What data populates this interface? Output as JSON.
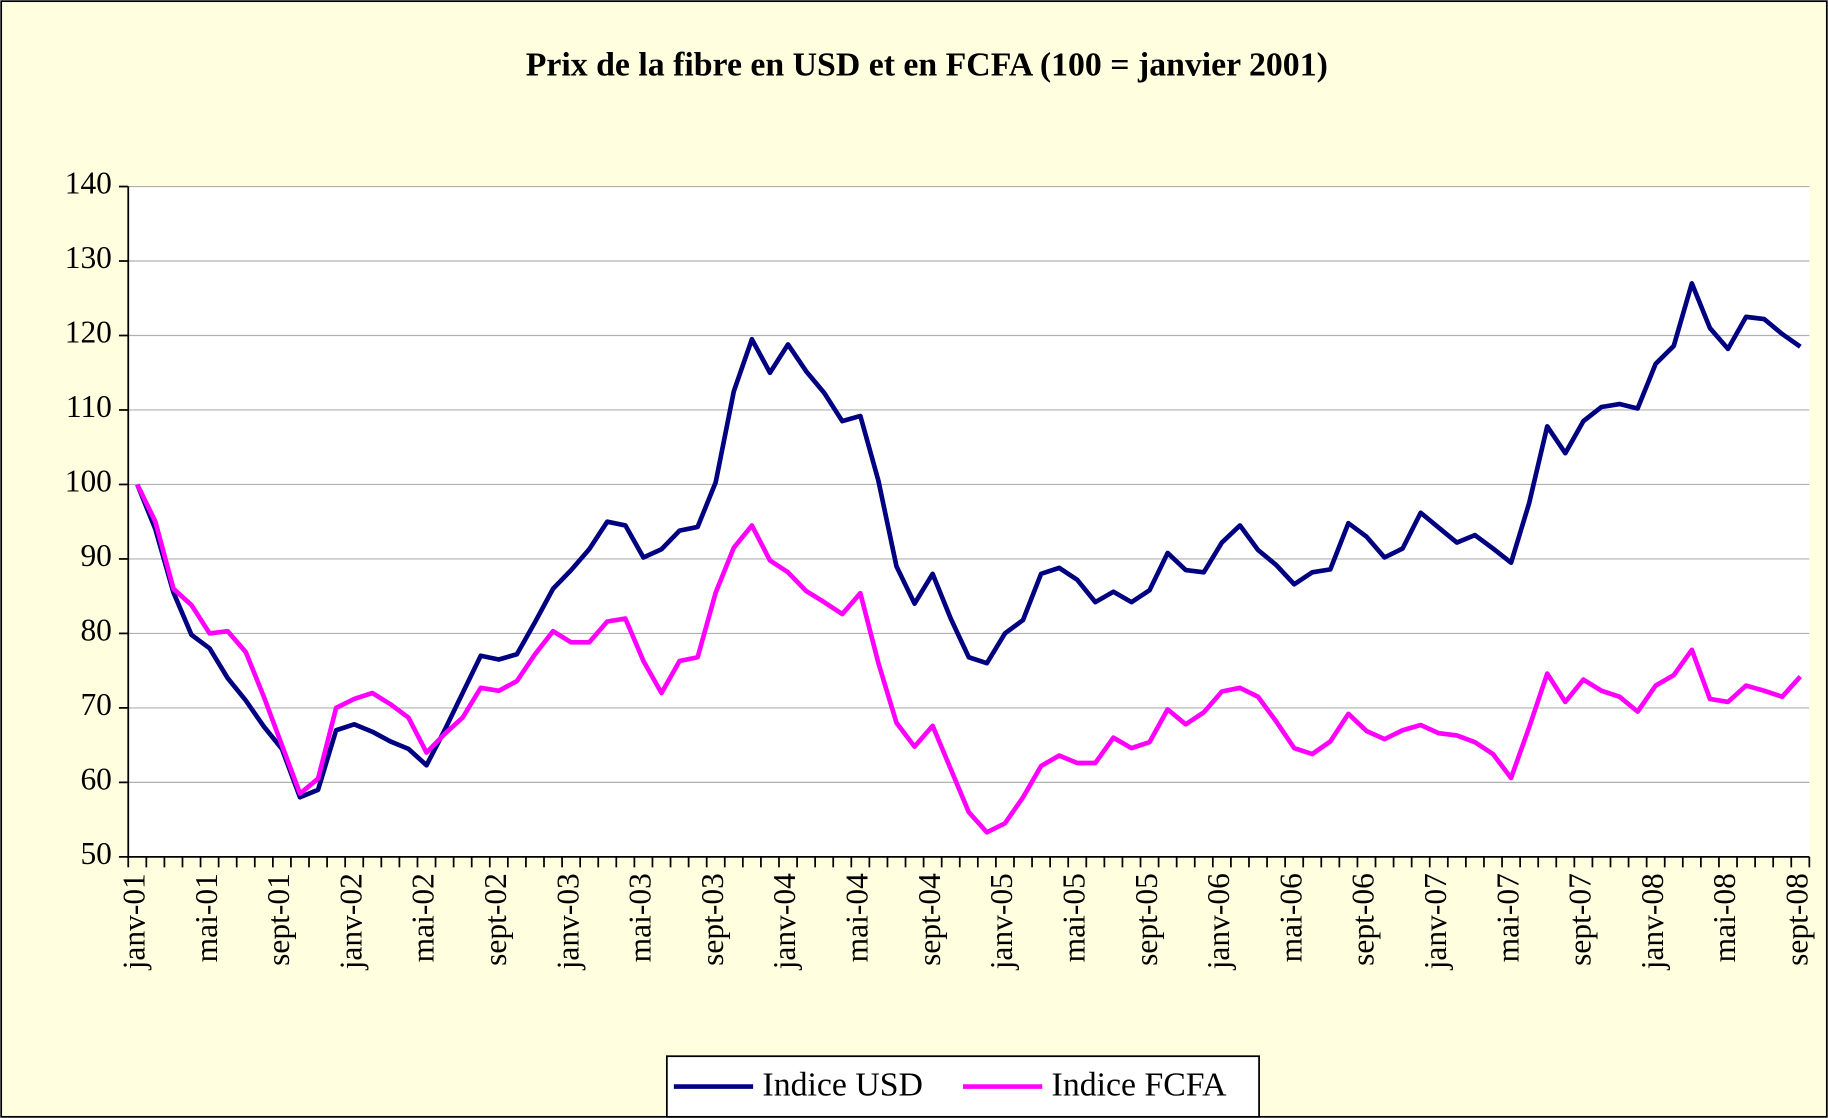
{
  "chart_data": {
    "type": "line",
    "title": "Prix de la fibre en USD et en FCFA (100 = janvier 2001)",
    "categories": [
      "janv-01",
      null,
      null,
      null,
      "mai-01",
      null,
      null,
      null,
      "sept-01",
      null,
      null,
      null,
      "janv-02",
      null,
      null,
      null,
      "mai-02",
      null,
      null,
      null,
      "sept-02",
      null,
      null,
      null,
      "janv-03",
      null,
      null,
      null,
      "mai-03",
      null,
      null,
      null,
      "sept-03",
      null,
      null,
      null,
      "janv-04",
      null,
      null,
      null,
      "mai-04",
      null,
      null,
      null,
      "sept-04",
      null,
      null,
      null,
      "janv-05",
      null,
      null,
      null,
      "mai-05",
      null,
      null,
      null,
      "sept-05",
      null,
      null,
      null,
      "janv-06",
      null,
      null,
      null,
      "mai-06",
      null,
      null,
      null,
      "sept-06",
      null,
      null,
      null,
      "janv-07",
      null,
      null,
      null,
      "mai-07",
      null,
      null,
      null,
      "sept-07",
      null,
      null,
      null,
      "janv-08",
      null,
      null,
      null,
      "mai-08",
      null,
      null,
      null,
      "sept-08"
    ],
    "series": [
      {
        "name": "Indice USD",
        "color": "#000080",
        "values": [
          100,
          94,
          85.5,
          79.8,
          78,
          74,
          71,
          67.5,
          64.5,
          58,
          59,
          67,
          67.8,
          66.8,
          65.5,
          64.5,
          62.3,
          67,
          72,
          77,
          76.5,
          77.2,
          81.5,
          86,
          88.5,
          91.3,
          95,
          94.5,
          90.2,
          91.3,
          93.8,
          94.3,
          100.3,
          112.5,
          119.5,
          115,
          118.8,
          115.2,
          112.3,
          108.5,
          109.2,
          100.5,
          89,
          84,
          88,
          82,
          76.8,
          76,
          80,
          81.8,
          88,
          88.8,
          87.2,
          84.2,
          85.6,
          84.2,
          85.8,
          90.8,
          88.5,
          88.2,
          92.2,
          94.5,
          91.2,
          89.2,
          86.6,
          88.2,
          88.6,
          94.8,
          93,
          90.2,
          91.4,
          96.2,
          94.2,
          92.2,
          93.2,
          91.4,
          89.5,
          97.5,
          107.8,
          104.2,
          108.5,
          110.4,
          110.8,
          110.2,
          116.2,
          118.6,
          127,
          121,
          118.2,
          122.5,
          122.2,
          120.2,
          118.5
        ]
      },
      {
        "name": "Indice FCFA",
        "color": "#ff00ff",
        "values": [
          100,
          95,
          86,
          83.8,
          80,
          80.3,
          77.5,
          71.5,
          65,
          58.5,
          60.5,
          70,
          71.2,
          72,
          70.5,
          68.7,
          64,
          66.5,
          68.7,
          72.7,
          72.3,
          73.6,
          77.2,
          80.3,
          78.8,
          78.8,
          81.6,
          82,
          76.3,
          72,
          76.3,
          76.8,
          85.5,
          91.5,
          94.5,
          89.8,
          88.2,
          85.7,
          84.2,
          82.6,
          85.4,
          76,
          68,
          64.8,
          67.6,
          61.8,
          56,
          53.3,
          54.5,
          58,
          62.2,
          63.6,
          62.6,
          62.6,
          66,
          64.6,
          65.4,
          69.8,
          67.8,
          69.4,
          72.2,
          72.7,
          71.5,
          68.2,
          64.6,
          63.8,
          65.5,
          69.2,
          66.9,
          65.8,
          67,
          67.7,
          66.6,
          66.3,
          65.4,
          63.8,
          60.6,
          67.4,
          74.6,
          70.8,
          73.8,
          72.3,
          71.5,
          69.5,
          73,
          74.4,
          77.8,
          71.2,
          70.8,
          73,
          72.3,
          71.5,
          74.2
        ]
      }
    ],
    "ylim": [
      50,
      140
    ],
    "yticks": [
      50,
      60,
      70,
      80,
      90,
      100,
      110,
      120,
      130,
      140
    ],
    "grid": true,
    "legend": "bottom"
  }
}
